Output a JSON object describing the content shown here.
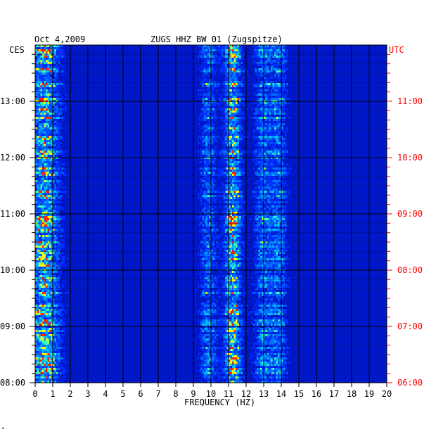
{
  "chart_data": {
    "type": "heatmap",
    "title_date": "Oct 4,2009",
    "title_station": "ZUGS HHZ BW 01 (Zugspitze)",
    "left_timezone": "CES",
    "right_timezone": "UTC",
    "xlabel": "FREQUENCY (HZ)",
    "xlim": [
      0,
      20
    ],
    "x_ticks": [
      "0",
      "1",
      "2",
      "3",
      "4",
      "5",
      "6",
      "7",
      "8",
      "9",
      "10",
      "11",
      "12",
      "13",
      "14",
      "15",
      "16",
      "17",
      "18",
      "19",
      "20"
    ],
    "left_time_range": [
      "08:00",
      "14:00"
    ],
    "left_time_ticks": [
      "13:00",
      "12:00",
      "11:00",
      "10:00",
      "09:00",
      "08:00"
    ],
    "right_time_ticks": [
      "11:00",
      "10:00",
      "09:00",
      "08:00",
      "07:00",
      "06:00"
    ],
    "energy_bands_hz": [
      {
        "center": 0.5,
        "level": "high"
      },
      {
        "center": 11.2,
        "level": "high"
      },
      {
        "center": 9.8,
        "level": "medium"
      },
      {
        "center": 13.8,
        "level": "medium"
      },
      {
        "center": 12.9,
        "level": "medium"
      }
    ],
    "colors": {
      "background": "#0018c8",
      "low": "#0030ff",
      "mid": "#00c0ff",
      "high": "#ffff00",
      "peak": "#ff2000",
      "left_axis_text": "#000000",
      "right_axis_text": "#ff0000"
    }
  },
  "footer_mark": "\""
}
